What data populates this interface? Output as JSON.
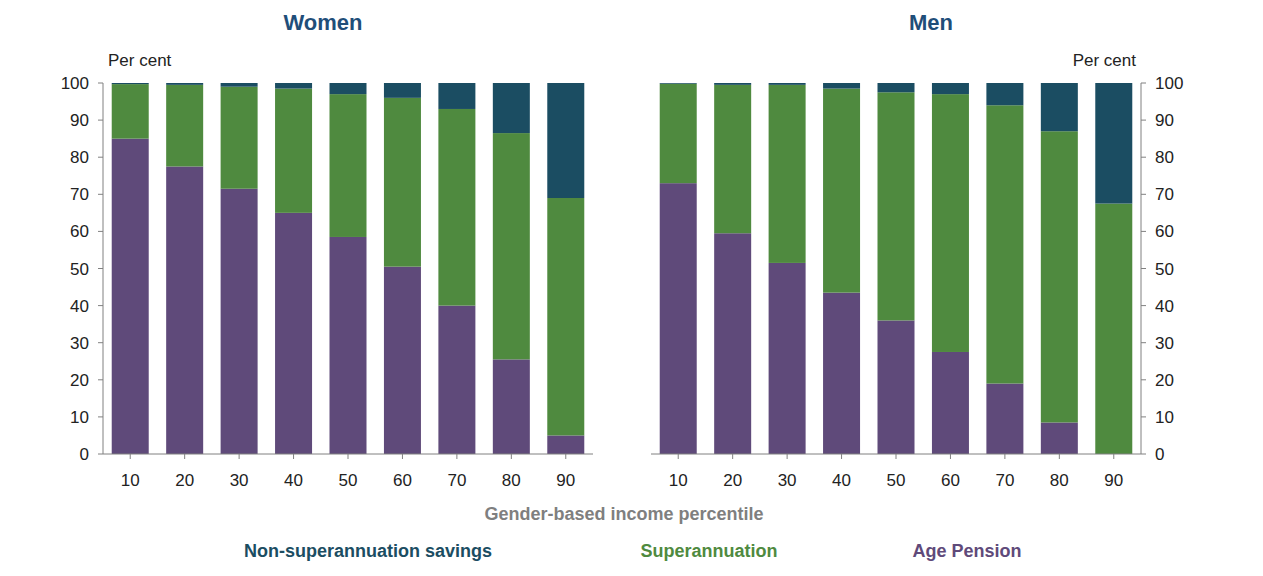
{
  "chart_data": {
    "type": "bar",
    "stacked": true,
    "x_label": "Gender-based income percentile",
    "y_label": "Per cent",
    "categories": [
      10,
      20,
      30,
      40,
      50,
      60,
      70,
      80,
      90
    ],
    "ylim": [
      0,
      100
    ],
    "yticks": [
      0,
      10,
      20,
      30,
      40,
      50,
      60,
      70,
      80,
      90,
      100
    ],
    "legend": "bottom",
    "series": [
      {
        "name": "Non-superannuation savings",
        "color": "#1b4d62"
      },
      {
        "name": "Superannuation",
        "color": "#4f8a3f"
      },
      {
        "name": "Age Pension",
        "color": "#5f4a7a"
      }
    ],
    "panels": [
      {
        "title": "Women",
        "values": [
          [
            0.3,
            0.5,
            1,
            1.5,
            3,
            4,
            7,
            13.5,
            31
          ],
          [
            14.7,
            22,
            27.5,
            33.5,
            38.5,
            45.5,
            53,
            61,
            64
          ],
          [
            85,
            77.5,
            71.5,
            65,
            58.5,
            50.5,
            40,
            25.5,
            5
          ]
        ]
      },
      {
        "title": "Men",
        "values": [
          [
            0.2,
            0.5,
            0.5,
            1.5,
            2.5,
            3,
            6,
            13,
            32.5
          ],
          [
            26.8,
            40,
            48,
            55,
            61.5,
            69.5,
            75,
            78.5,
            67.5
          ],
          [
            73,
            59.5,
            51.5,
            43.5,
            36,
            27.5,
            19,
            8.5,
            0
          ]
        ]
      }
    ]
  }
}
